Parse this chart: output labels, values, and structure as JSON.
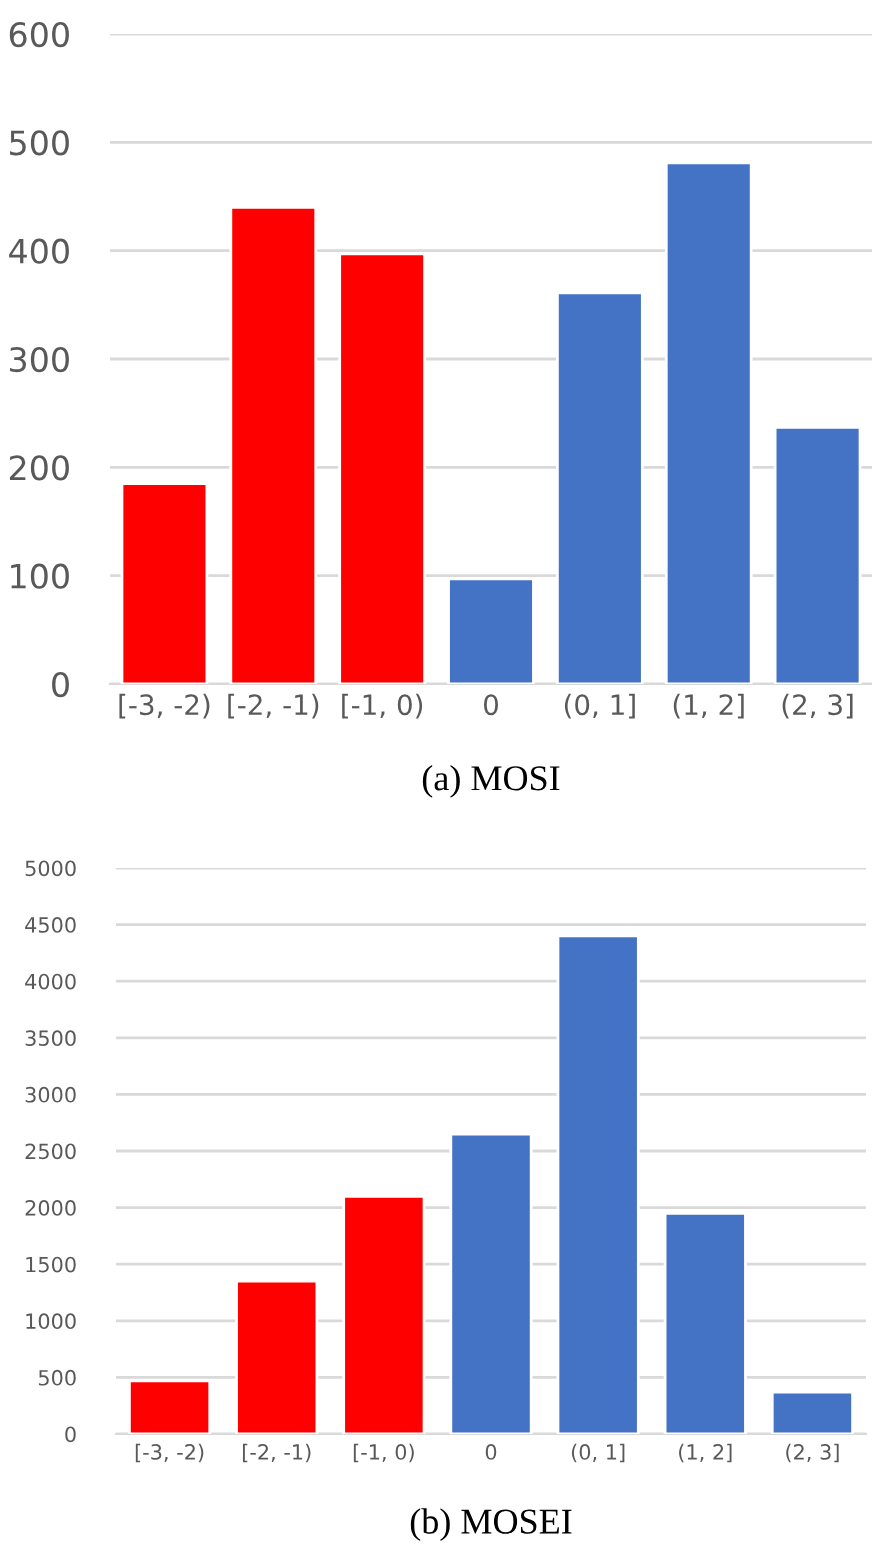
{
  "chart_data": [
    {
      "type": "bar",
      "xlabel": "(a) MOSI",
      "categories": [
        "[-3, -2)",
        "[-2, -1)",
        "[-1, 0)",
        "0",
        "(0, 1]",
        "(1, 2]",
        "(2, 3]"
      ],
      "values": [
        185,
        440,
        397,
        97,
        361,
        481,
        237
      ],
      "colors": [
        "#ff0000",
        "#ff0000",
        "#ff0000",
        "#4472c4",
        "#4472c4",
        "#4472c4",
        "#4472c4"
      ],
      "ylim": [
        0,
        600
      ],
      "yticks": [
        0,
        100,
        200,
        300,
        400,
        500,
        600
      ],
      "grid": "y"
    },
    {
      "type": "bar",
      "xlabel": "(b) MOSEI",
      "categories": [
        "[-3, -2)",
        "[-2, -1)",
        "[-1, 0)",
        "0",
        "(0, 1]",
        "(1, 2]",
        "(2, 3]"
      ],
      "values": [
        470,
        1350,
        2100,
        2650,
        4400,
        1950,
        370
      ],
      "colors": [
        "#ff0000",
        "#ff0000",
        "#ff0000",
        "#4472c4",
        "#4472c4",
        "#4472c4",
        "#4472c4"
      ],
      "ylim": [
        0,
        5000
      ],
      "yticks": [
        0,
        500,
        1000,
        1500,
        2000,
        2500,
        3000,
        3500,
        4000,
        4500,
        5000
      ],
      "grid": "y"
    }
  ]
}
